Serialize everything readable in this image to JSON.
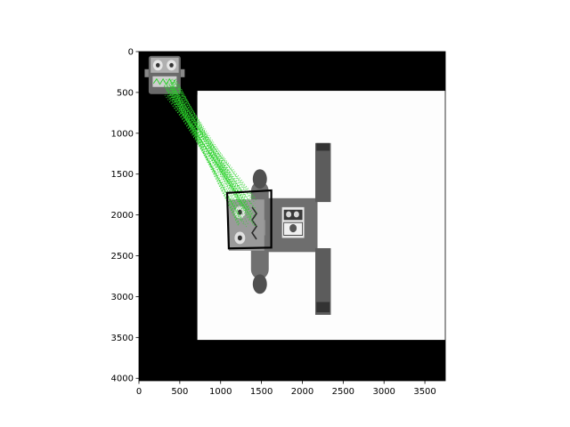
{
  "chart_data": {
    "type": "image",
    "title": "",
    "xlabel": "",
    "ylabel": "",
    "xlim": [
      0,
      3750
    ],
    "ylim": [
      4030,
      0
    ],
    "x_ticks": [
      0,
      500,
      1000,
      1500,
      2000,
      2500,
      3000,
      3500
    ],
    "y_ticks": [
      0,
      500,
      1000,
      1500,
      2000,
      2500,
      3000,
      3500,
      4000
    ],
    "grid": false,
    "background_color": "#000000",
    "scene_image": {
      "x_range": [
        715,
        3750
      ],
      "y_range": [
        480,
        3530
      ],
      "background_color": "#fdfdfd",
      "subject": "toy robot lying on its side"
    },
    "template_image": {
      "x_range": [
        0,
        715
      ],
      "y_range": [
        0,
        530
      ],
      "subject": "toy robot face with two eyes and zigzag mouth"
    },
    "detected_region": {
      "color": "#000000",
      "corners": [
        [
          1080,
          1730
        ],
        [
          1620,
          1700
        ],
        [
          1620,
          2400
        ],
        [
          1100,
          2410
        ]
      ]
    },
    "match_lines": {
      "color": "#2bd12b",
      "count": 60,
      "source_area": {
        "x": [
          300,
          500
        ],
        "y": [
          330,
          560
        ]
      },
      "target_area": {
        "x": [
          1200,
          1450
        ],
        "y": [
          1750,
          2150
        ]
      }
    }
  }
}
